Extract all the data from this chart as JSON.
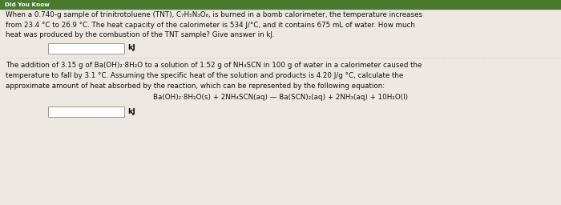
{
  "bg_color": "#ede9e2",
  "header_bar_color": "#4a7a2e",
  "text_color": "#111111",
  "input_box_color": "#ffffff",
  "input_box_border": "#999999",
  "divider_color": "#bbbbbb",
  "problem1_lines": [
    "When a 0.740-g sample of trinitrotoluene (TNT), C₇H₅N₃O₆, is burned in a bomb calorimeter, the temperature increases",
    "from 23.4 °C to 26.9 °C. The heat capacity of the calorimeter is 534 J/°C, and it contains 675 mL of water. How much",
    "heat was produced by the combustion of the TNT sample? Give answer in kJ."
  ],
  "problem1_answer_label": "kJ",
  "problem2_lines": [
    "The addition of 3.15 g of Ba(OH)₂·8H₂O to a solution of 1.52 g of NH₄SCN in 100 g of water in a calorimeter caused the",
    "temperature to fall by 3.1 °C. Assuming the specific heat of the solution and products is 4.20 J/g °C, calculate the",
    "approximate amount of heat absorbed by the reaction, which can be represented by the following equation:"
  ],
  "equation_line": "Ba(OH)₂·8H₂O(s) + 2NH₄SCN(aq) — Ba(SCN)₂(aq) + 2NH₃(aq) + 10H₂O(l)",
  "problem2_answer_label": "kJ",
  "header_text": "Did You Know"
}
